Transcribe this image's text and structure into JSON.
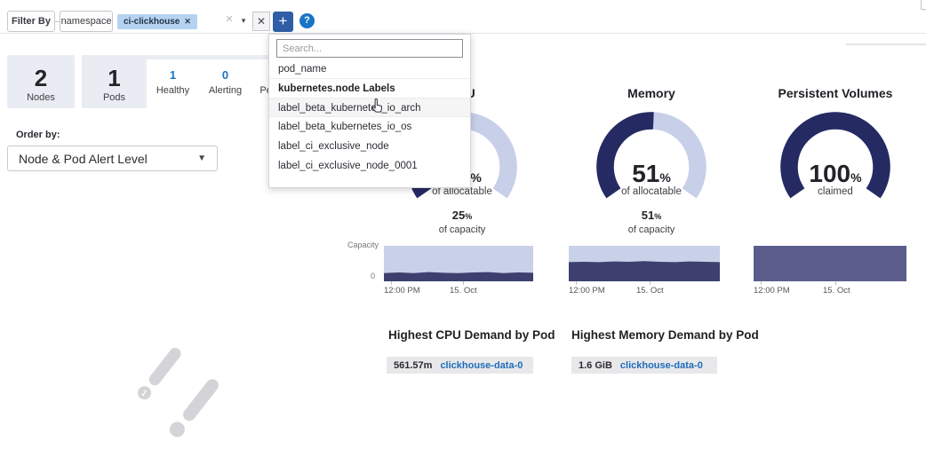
{
  "icons": {
    "close": "✕",
    "caret_down": "▾",
    "plus": "+",
    "help": "?",
    "percent": "%"
  },
  "colors": {
    "accent_blue": "#1a6fc4",
    "link_blue": "#1e6cbb",
    "gauge_fill": "#262a63",
    "gauge_track": "#c7cfe9",
    "area_capacity": "#c9d1e8",
    "area_used_dark": "#3d406f",
    "area_pv": "#5b5e8c",
    "tag_bg": "#b5d3f0",
    "card_bg": "#e9ecf3",
    "plus_button": "#2f5ea6",
    "help_icon": "#1a74c6"
  },
  "filter_bar": {
    "filter_by_label": "Filter By",
    "scope_label": "namespace",
    "tag": {
      "text": "ci-clickhouse"
    }
  },
  "dropdown": {
    "search_placeholder": "Search...",
    "top_item": "pod_name",
    "section_header": "kubernetes.node Labels",
    "items": [
      "label_beta_kubernetes_io_arch",
      "label_beta_kubernetes_io_os",
      "label_ci_exclusive_node",
      "label_ci_exclusive_node_0001"
    ],
    "hovered_item": "label_beta_kubernetes_io_arch"
  },
  "stats": {
    "nodes": {
      "value": "2",
      "label": "Nodes"
    },
    "pods": {
      "value": "1",
      "label": "Pods"
    },
    "pod_states": [
      {
        "value": "1",
        "label": "Healthy"
      },
      {
        "value": "0",
        "label": "Alerting"
      },
      {
        "value": "0",
        "label": "Pending"
      }
    ]
  },
  "order_by": {
    "label": "Order by:",
    "value": "Node & Pod Alert Level"
  },
  "chart_data": {
    "gauges": [
      {
        "type": "gauge",
        "title": "CPU",
        "percent": 25,
        "label": "of allocatable"
      },
      {
        "type": "gauge",
        "title": "Memory",
        "percent": 51,
        "label": "of allocatable"
      },
      {
        "type": "gauge",
        "title": "Persistent Volumes",
        "percent": 100,
        "label": "claimed"
      }
    ],
    "capacity_notes": [
      {
        "percent": 25,
        "label": "of capacity"
      },
      {
        "percent": 51,
        "label": "of capacity"
      }
    ],
    "area_charts": [
      {
        "type": "area",
        "name": "cpu-capacity",
        "ylabel_top": "Capacity",
        "ylabel_bottom": "0",
        "x_ticks": [
          "12:00 PM",
          "15. Oct"
        ],
        "used_percent_series": [
          23,
          25,
          23,
          26,
          24,
          23,
          25,
          26,
          23,
          25,
          24
        ],
        "capacity_color": "#c9d1e8",
        "fill_color": "#3d406f"
      },
      {
        "type": "area",
        "name": "memory-capacity",
        "x_ticks": [
          "12:00 PM",
          "15. Oct"
        ],
        "used_percent_series": [
          54,
          55,
          54,
          56,
          55,
          57,
          55,
          54,
          56,
          55,
          54
        ],
        "capacity_color": "#c9d1e8",
        "fill_color": "#3d406f"
      },
      {
        "type": "area",
        "name": "pv-claimed",
        "x_ticks": [
          "12:00 PM",
          "15. Oct"
        ],
        "used_percent_series": [
          100,
          100,
          100,
          100,
          100,
          100,
          100,
          100,
          100,
          100,
          100
        ],
        "capacity_color": "#c9d1e8",
        "fill_color": "#5b5e8c"
      }
    ]
  },
  "highest": {
    "cpu": {
      "title": "Highest CPU Demand by Pod",
      "value": "561.57m",
      "pod": "clickhouse-data-0"
    },
    "memory": {
      "title": "Highest Memory Demand by Pod",
      "value": "1.6 GiB",
      "pod": "clickhouse-data-0"
    }
  },
  "decorations": {
    "node_badge": "1"
  }
}
